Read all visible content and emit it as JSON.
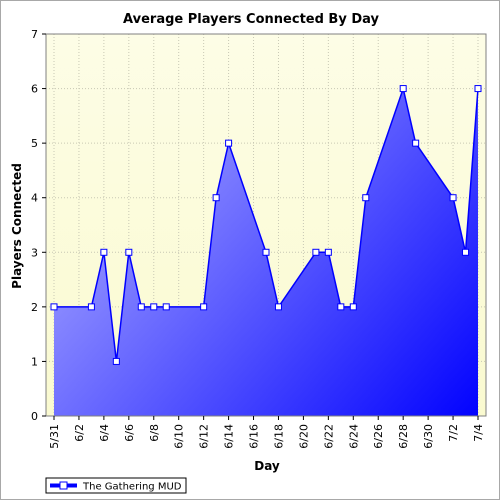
{
  "chart_data": {
    "type": "area",
    "title": "Average Players Connected By Day",
    "xlabel": "Day",
    "ylabel": "Players Connected",
    "ylim": [
      0,
      7
    ],
    "yticks": [
      "0",
      "1",
      "2",
      "3",
      "4",
      "5",
      "6",
      "7"
    ],
    "xlim": [
      "5/31",
      "7/4"
    ],
    "xticks": [
      "5/31",
      "6/2",
      "6/4",
      "6/6",
      "6/8",
      "6/10",
      "6/12",
      "6/14",
      "6/16",
      "6/18",
      "6/20",
      "6/22",
      "6/24",
      "6/26",
      "6/28",
      "6/30",
      "7/2",
      "7/4"
    ],
    "grid": true,
    "legend_position": "bottom-left",
    "series": [
      {
        "name": "The Gathering MUD",
        "color": "#0000ff",
        "x": [
          "5/31",
          "6/3",
          "6/4",
          "6/5",
          "6/6",
          "6/7",
          "6/8",
          "6/9",
          "6/12",
          "6/13",
          "6/14",
          "6/17",
          "6/18",
          "6/21",
          "6/22",
          "6/23",
          "6/24",
          "6/25",
          "6/28",
          "6/29",
          "7/2",
          "7/3",
          "7/4"
        ],
        "values": [
          2,
          2,
          3,
          1,
          3,
          2,
          2,
          2,
          2,
          4,
          5,
          3,
          2,
          3,
          3,
          2,
          2,
          4,
          6,
          5,
          4,
          3,
          6
        ]
      }
    ]
  },
  "colors": {
    "plot_bg_top": "#fdfde6",
    "plot_bg_bottom": "#fafad0",
    "area_light": "#c8c8ff",
    "area_dark": "#0000ff",
    "line": "#0000ff",
    "marker_fill": "#ffffff"
  }
}
